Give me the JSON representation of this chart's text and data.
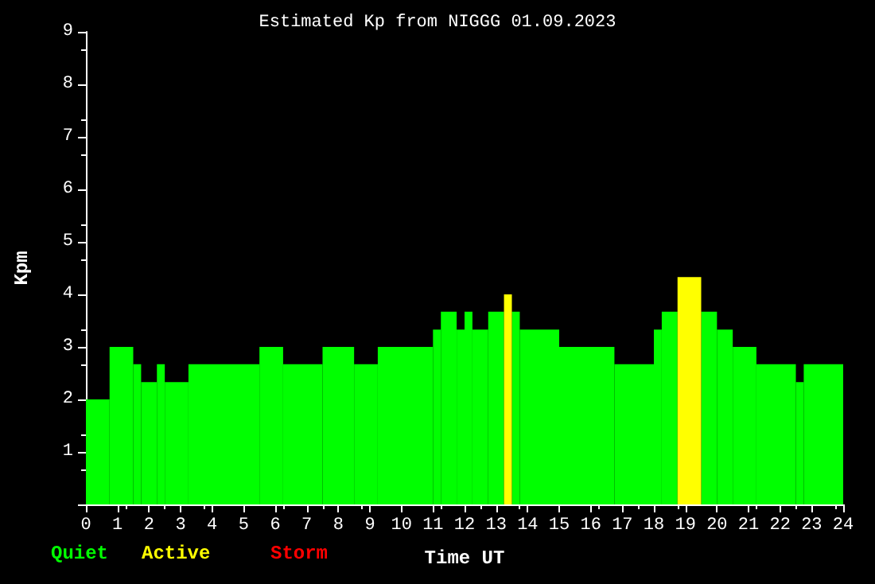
{
  "chart_data": {
    "type": "histogram",
    "title": "Estimated Kp from NIGGG 01.09.2023",
    "xlabel": "Time UT",
    "ylabel": "Kpm",
    "bins": [
      0,
      0.75,
      1.5,
      1.75,
      2.25,
      2.5,
      3.25,
      5.5,
      6.25,
      7.5,
      8.5,
      9.25,
      11,
      11.25,
      11.75,
      12,
      12.25,
      12.75,
      13.25,
      13.5,
      13.75,
      15,
      16.75,
      18,
      18.25,
      18.75,
      19.5,
      20,
      20.5,
      21.25,
      22.5,
      22.75,
      24
    ],
    "series": [
      {
        "name": "Quiet",
        "color": "#00ff00",
        "values": [
          2,
          3,
          2.67,
          2.33,
          2.67,
          2.33,
          2.67,
          3,
          2.67,
          3,
          2.67,
          3,
          3.33,
          3.67,
          3.33,
          3.67,
          3.33,
          3.67,
          null,
          3.67,
          3.33,
          3,
          2.67,
          3.33,
          3.67,
          null,
          3.67,
          3.33,
          3,
          2.67,
          2.33,
          2.67
        ]
      },
      {
        "name": "Active",
        "color": "#ffff00",
        "values": [
          null,
          null,
          null,
          null,
          null,
          null,
          null,
          null,
          null,
          null,
          null,
          null,
          null,
          null,
          null,
          null,
          null,
          null,
          4,
          null,
          null,
          null,
          null,
          null,
          null,
          4.33,
          null,
          null,
          null,
          null,
          null,
          null
        ]
      }
    ],
    "annotations": [
      "Storm"
    ],
    "xlim": [
      0,
      24
    ],
    "xticks": [
      0,
      1,
      2,
      3,
      4,
      5,
      6,
      7,
      8,
      9,
      10,
      11,
      12,
      13,
      14,
      15,
      16,
      17,
      18,
      19,
      20,
      21,
      22,
      23,
      24
    ],
    "ylim": [
      0,
      9
    ],
    "yticks": [
      {
        "value": 0,
        "label": null
      },
      1,
      2,
      3,
      4,
      5,
      6,
      7,
      8,
      9
    ],
    "legend": "bottom left"
  }
}
